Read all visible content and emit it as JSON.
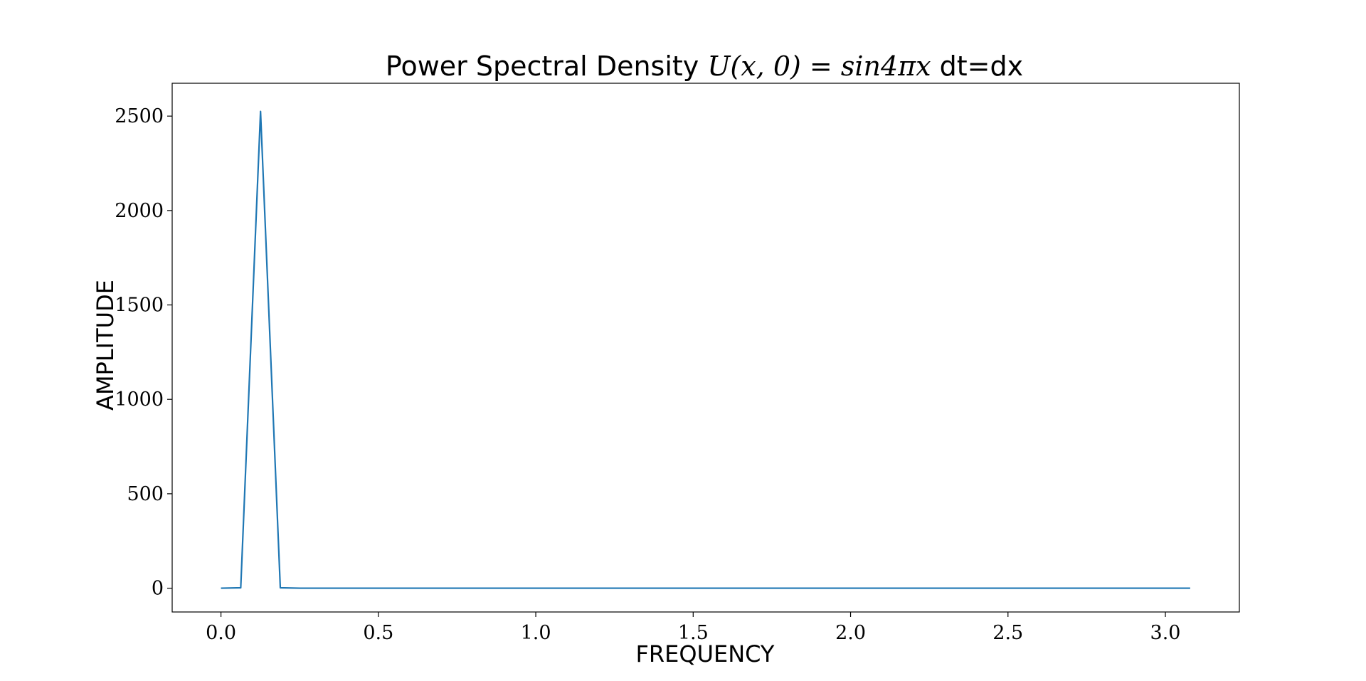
{
  "chart_data": {
    "type": "line",
    "title": {
      "prefix": "Power Spectral Density ",
      "math": "U(x, 0) = sin4πx",
      "suffix": " dt=dx"
    },
    "xlabel": "FREQUENCY",
    "ylabel": "AMPLITUDE",
    "xlim": [
      -0.155,
      3.235
    ],
    "ylim": [
      -126,
      2674
    ],
    "xticks": [
      0.0,
      0.5,
      1.0,
      1.5,
      2.0,
      2.5,
      3.0
    ],
    "xtick_labels": [
      "0.0",
      "0.5",
      "1.0",
      "1.5",
      "2.0",
      "2.5",
      "3.0"
    ],
    "yticks": [
      0,
      500,
      1000,
      1500,
      2000,
      2500
    ],
    "ytick_labels": [
      "0",
      "500",
      "1000",
      "1500",
      "2000",
      "2500"
    ],
    "grid": false,
    "series": [
      {
        "color": "#1f77b4",
        "x": [
          0.0,
          0.0628,
          0.1257,
          0.1885,
          0.2513,
          0.3142,
          3.0788
        ],
        "y": [
          0,
          2,
          2525,
          2,
          0,
          0,
          0
        ]
      }
    ]
  }
}
